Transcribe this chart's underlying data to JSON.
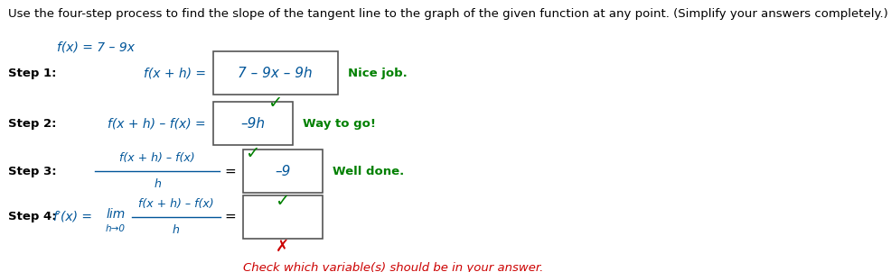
{
  "background_color": "#ffffff",
  "title_text": "Use the four-step process to find the slope of the tangent line to the graph of the given function at any point. (Simplify your answers completely.)",
  "title_fontsize": 9.5,
  "title_color": "#000000",
  "function_text": "f(x) = 7 – 9x",
  "steps": [
    {
      "label": "Step 1:",
      "lhs": "f(x + h) =",
      "box_content": "7 – 9x – 9h",
      "feedback": "Nice job.",
      "feedback_color": "#008000",
      "checkmark_color": "#008000"
    },
    {
      "label": "Step 2:",
      "lhs": "f(x + h) – f(x) =",
      "box_content": "–9h",
      "feedback": "Way to go!",
      "feedback_color": "#008000",
      "checkmark_color": "#008000"
    },
    {
      "label": "Step 3:",
      "box_content": "–9",
      "feedback": "Well done.",
      "feedback_color": "#008000",
      "checkmark_color": "#008000"
    }
  ],
  "step4": {
    "label": "Step 4:",
    "feedback": "Check which variable(s) should be in your answer.",
    "feedback_color": "#cc0000",
    "cross_color": "#cc0000"
  },
  "checkmark_color": "#008000",
  "box_border_color": "#555555",
  "box_fill_color": "#ffffff",
  "label_color": "#000000",
  "label_fontsize": 9.5,
  "italic_color": "#005599",
  "content_fontsize": 11,
  "feedback_fontsize": 9.5
}
